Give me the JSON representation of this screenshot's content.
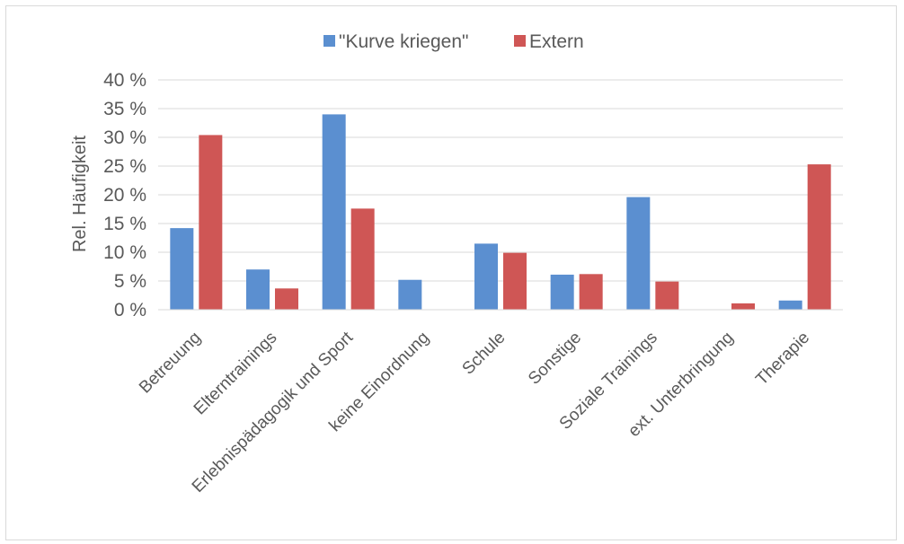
{
  "chart_data": {
    "type": "bar",
    "ylabel": "Rel. Häufigkeit",
    "xlabel": "",
    "ylim": [
      0,
      40
    ],
    "ytick_values": [
      0,
      5,
      10,
      15,
      20,
      25,
      30,
      35,
      40
    ],
    "ytick_labels": [
      "0 %",
      "5 %",
      "10 %",
      "15 %",
      "20 %",
      "25 %",
      "30 %",
      "35 %",
      "40 %"
    ],
    "grid": true,
    "legend_position": "top",
    "categories": [
      "Betreuung",
      "Elterntrainings",
      "Erlebnispädagogik und Sport",
      "keine Einordnung",
      "Schule",
      "Sonstige",
      "Soziale Trainings",
      "ext. Unterbringung",
      "Therapie"
    ],
    "series": [
      {
        "name": "\"Kurve kriegen\"",
        "color": "#5b8fd0",
        "values": [
          14.2,
          7.0,
          34.0,
          5.2,
          11.5,
          6.1,
          19.6,
          0,
          1.6
        ]
      },
      {
        "name": "Extern",
        "color": "#cf5655",
        "values": [
          30.4,
          3.7,
          17.6,
          0,
          9.9,
          6.2,
          4.9,
          1.1,
          25.3
        ]
      }
    ]
  }
}
